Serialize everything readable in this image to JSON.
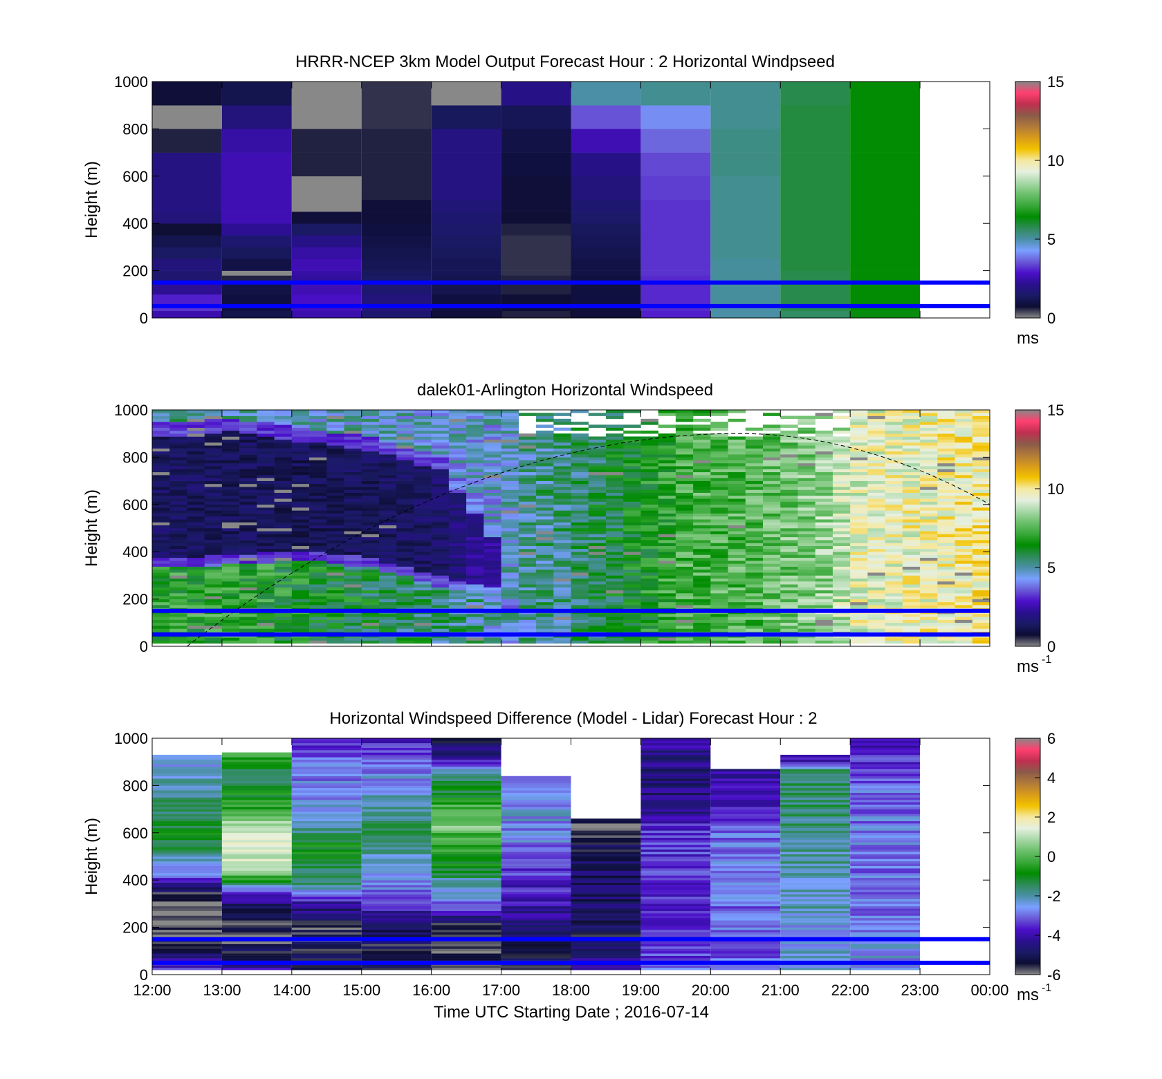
{
  "figure": {
    "xlabel": "Time UTC  Starting Date ; 2016-07-14",
    "x_tick_labels": [
      "12:00",
      "13:00",
      "14:00",
      "15:00",
      "16:00",
      "17:00",
      "18:00",
      "19:00",
      "20:00",
      "21:00",
      "22:00",
      "23:00",
      "00:00"
    ],
    "y_tick_labels": [
      "0",
      "200",
      "400",
      "600",
      "800",
      "1000"
    ],
    "ylabel": "Height (m)"
  },
  "colormap": [
    "#888888",
    "#0d0d33",
    "#1a1a66",
    "#2a0f8f",
    "#4b0fc9",
    "#6a5ad6",
    "#7aa0ff",
    "#4a8fa6",
    "#2e8b57",
    "#008c00",
    "#3aa83a",
    "#6cc06c",
    "#a8d8a8",
    "#e6f0e0",
    "#f5e8a0",
    "#f2c200",
    "#d99b1a",
    "#b07a3a",
    "#8b5a4a",
    "#c03050",
    "#ff4070",
    "#888888"
  ],
  "chart_data": [
    {
      "type": "heatmap",
      "title": "HRRR-NCEP 3km Model Output   Forecast Hour : 2 Horizontal Windpseed",
      "xlabel": "",
      "ylabel": "Height (m)",
      "xlim": [
        12,
        24
      ],
      "ylim": [
        0,
        1000
      ],
      "y_ticks": [
        0,
        200,
        400,
        600,
        800,
        1000
      ],
      "colorbar": {
        "ticks": [
          "0",
          "5",
          "10",
          "15"
        ],
        "range": [
          0,
          15
        ],
        "unit": "ms",
        "unit_sup": ""
      },
      "reference_lines_m": [
        150,
        50
      ],
      "y_edges": [
        0,
        30,
        50,
        100,
        150,
        180,
        200,
        250,
        300,
        350,
        400,
        450,
        500,
        600,
        700,
        800,
        900,
        1000
      ],
      "columns": [
        {
          "t": 12,
          "speeds": [
            2.5,
            3.2,
            3.0,
            2.2,
            1.6,
            1.6,
            1.8,
            1.4,
            1.1,
            0.7,
            1.8,
            1.9,
            1.9,
            1.9,
            0.6,
            0.0,
            0.8
          ]
        },
        {
          "t": 13,
          "speeds": [
            1.1,
            0.9,
            0.9,
            1.0,
            0.6,
            0.0,
            1.0,
            1.3,
            1.6,
            2.2,
            2.6,
            2.6,
            2.6,
            2.6,
            2.4,
            1.8,
            1.1
          ]
        },
        {
          "t": 14,
          "speeds": [
            2.5,
            2.7,
            2.8,
            2.6,
            2.3,
            2.4,
            2.6,
            2.4,
            2.0,
            1.4,
            0.8,
            0.0,
            0.0,
            0.6,
            0.6,
            0.0,
            0.0
          ]
        },
        {
          "t": 15,
          "speeds": [
            1.6,
            1.8,
            1.8,
            1.6,
            1.4,
            1.3,
            1.2,
            1.1,
            1.0,
            0.9,
            0.8,
            0.8,
            0.6,
            0.6,
            0.6,
            0.5,
            0.5
          ]
        },
        {
          "t": 16,
          "speeds": [
            0.8,
            0.9,
            0.9,
            1.1,
            1.1,
            1.2,
            1.2,
            1.3,
            1.4,
            1.5,
            1.6,
            1.7,
            1.9,
            1.9,
            1.9,
            1.3,
            0.0
          ]
        },
        {
          "t": 17,
          "speeds": [
            0.6,
            0.7,
            0.7,
            0.6,
            0.6,
            0.5,
            0.5,
            0.5,
            0.5,
            0.6,
            0.7,
            0.8,
            0.8,
            0.9,
            1.0,
            1.2,
            2.0
          ]
        },
        {
          "t": 18,
          "speeds": [
            0.8,
            0.8,
            0.9,
            0.9,
            0.9,
            1.0,
            1.0,
            1.1,
            1.2,
            1.3,
            1.5,
            1.6,
            1.8,
            2.0,
            2.6,
            3.5,
            5.0
          ]
        },
        {
          "t": 19,
          "speeds": [
            3.0,
            3.1,
            3.1,
            3.1,
            3.1,
            3.2,
            3.2,
            3.2,
            3.2,
            3.2,
            3.2,
            3.2,
            3.3,
            3.4,
            3.7,
            4.1,
            5.2
          ]
        },
        {
          "t": 20,
          "speeds": [
            5.0,
            5.0,
            5.1,
            5.1,
            5.1,
            5.1,
            5.1,
            5.2,
            5.2,
            5.2,
            5.2,
            5.2,
            5.2,
            5.3,
            5.3,
            5.2,
            5.2
          ]
        },
        {
          "t": 21,
          "speeds": [
            5.6,
            5.8,
            5.8,
            5.8,
            5.8,
            5.8,
            5.9,
            5.9,
            5.9,
            5.9,
            5.9,
            5.9,
            5.9,
            5.9,
            5.9,
            5.9,
            5.8
          ]
        },
        {
          "t": 22,
          "speeds": [
            6.3,
            6.4,
            6.4,
            6.4,
            6.4,
            6.4,
            6.4,
            6.4,
            6.4,
            6.4,
            6.4,
            6.4,
            6.4,
            6.4,
            6.4,
            6.4,
            6.4
          ]
        }
      ]
    },
    {
      "type": "heatmap",
      "title": "dalek01-Arlington  Horizontal Windspeed",
      "xlabel": "",
      "ylabel": "Height (m)",
      "xlim": [
        12,
        24
      ],
      "ylim": [
        0,
        1000
      ],
      "y_ticks": [
        0,
        200,
        400,
        600,
        800,
        1000
      ],
      "colorbar": {
        "ticks": [
          "0",
          "5",
          "10",
          "15"
        ],
        "range": [
          0,
          15
        ],
        "unit": "ms",
        "unit_sup": "-1"
      },
      "reference_lines_m": [
        150,
        50
      ],
      "dashed_curve": {
        "start_t": 12.5,
        "peak_t": 20.4,
        "peak_height_m": 900,
        "end_t": 24,
        "end_height_m": 600
      },
      "time_resolution_h": 0.25,
      "time_range": [
        12,
        23.9
      ],
      "regime": [
        {
          "t": 12.0,
          "ll_top": 330,
          "jet_top": 940,
          "low_speed": 6.8,
          "low_bg": 1.4,
          "above": 5.5
        },
        {
          "t": 13.0,
          "ll_top": 340,
          "jet_top": 960,
          "low_speed": 7.0,
          "low_bg": 1.3,
          "above": 5.2
        },
        {
          "t": 14.0,
          "ll_top": 360,
          "jet_top": 920,
          "low_speed": 6.4,
          "low_bg": 1.2,
          "above": 4.8
        },
        {
          "t": 15.0,
          "ll_top": 330,
          "jet_top": 880,
          "low_speed": 6.0,
          "low_bg": 1.3,
          "above": 4.8
        },
        {
          "t": 16.0,
          "ll_top": 250,
          "jet_top": 800,
          "low_speed": 5.5,
          "low_bg": 1.5,
          "above": 4.6
        },
        {
          "t": 16.8,
          "ll_top": 200,
          "jet_top": 500,
          "low_speed": 4.8,
          "low_bg": 2.5,
          "above": 4.5
        },
        {
          "t": 17.2,
          "ll_top": 0,
          "jet_top": 0,
          "low_speed": 4.4,
          "low_bg": 4.4,
          "above": 5.0
        },
        {
          "t": 18.5,
          "ll_top": 0,
          "jet_top": 0,
          "low_speed": 5.5,
          "low_bg": 5.5,
          "above": 6.0
        },
        {
          "t": 19.5,
          "ll_top": 0,
          "jet_top": 0,
          "low_speed": 7.0,
          "low_bg": 7.0,
          "above": 7.3
        },
        {
          "t": 20.5,
          "ll_top": 0,
          "jet_top": 0,
          "low_speed": 7.6,
          "low_bg": 7.6,
          "above": 7.5
        },
        {
          "t": 21.5,
          "ll_top": 0,
          "jet_top": 0,
          "low_speed": 7.8,
          "low_bg": 7.8,
          "above": 8.3
        },
        {
          "t": 22.0,
          "ll_top": 0,
          "jet_top": 0,
          "low_speed": 9.0,
          "low_bg": 9.0,
          "above": 9.3
        },
        {
          "t": 23.0,
          "ll_top": 0,
          "jet_top": 0,
          "low_speed": 9.4,
          "low_bg": 9.4,
          "above": 9.6
        },
        {
          "t": 24.0,
          "ll_top": 0,
          "jet_top": 0,
          "low_speed": 10.3,
          "low_bg": 10.3,
          "above": 10.0
        }
      ]
    },
    {
      "type": "heatmap",
      "title": "Horizontal Windspeed Difference (Model - Lidar) Forecast Hour : 2",
      "xlabel": "Time UTC  Starting Date ; 2016-07-14",
      "ylabel": "Height (m)",
      "xlim": [
        12,
        24
      ],
      "ylim": [
        0,
        1000
      ],
      "y_ticks": [
        0,
        200,
        400,
        600,
        800,
        1000
      ],
      "colorbar": {
        "ticks": [
          "-6",
          "-4",
          "-2",
          "0",
          "2",
          "4",
          "6"
        ],
        "range": [
          -6,
          6
        ],
        "unit": "ms",
        "unit_sup": "-1"
      },
      "reference_lines_m": [
        150,
        50
      ],
      "columns": [
        {
          "t": 12,
          "top": 930,
          "profile": [
            [
              0,
              -3.0
            ],
            [
              150,
              -6.0
            ],
            [
              300,
              -6.0
            ],
            [
              380,
              -4.5
            ],
            [
              420,
              -2.8
            ],
            [
              600,
              -0.8
            ],
            [
              750,
              -2.0
            ],
            [
              930,
              -2.5
            ]
          ]
        },
        {
          "t": 13,
          "top": 940,
          "profile": [
            [
              0,
              -4.0
            ],
            [
              150,
              -6.0
            ],
            [
              280,
              -5.0
            ],
            [
              380,
              -2.0
            ],
            [
              430,
              1.2
            ],
            [
              600,
              1.5
            ],
            [
              700,
              -0.6
            ],
            [
              850,
              -1.5
            ],
            [
              940,
              0.0
            ]
          ]
        },
        {
          "t": 14,
          "top": 1000,
          "profile": [
            [
              0,
              -5.0
            ],
            [
              200,
              -5.6
            ],
            [
              300,
              -4.0
            ],
            [
              380,
              -1.8
            ],
            [
              550,
              -0.8
            ],
            [
              650,
              -2.5
            ],
            [
              900,
              -3.0
            ],
            [
              1000,
              -3.5
            ]
          ]
        },
        {
          "t": 15,
          "top": 1000,
          "profile": [
            [
              0,
              -5.5
            ],
            [
              200,
              -5.0
            ],
            [
              300,
              -3.5
            ],
            [
              400,
              -2.5
            ],
            [
              600,
              -1.5
            ],
            [
              800,
              -2.5
            ],
            [
              950,
              -3.5
            ],
            [
              1000,
              -4.0
            ]
          ]
        },
        {
          "t": 16,
          "top": 1000,
          "profile": [
            [
              0,
              -5.8
            ],
            [
              200,
              -5.5
            ],
            [
              300,
              -2.8
            ],
            [
              450,
              -1.2
            ],
            [
              650,
              0.5
            ],
            [
              850,
              -2.0
            ],
            [
              920,
              -4.5
            ],
            [
              1000,
              -5.2
            ]
          ]
        },
        {
          "t": 17,
          "top": 840,
          "profile": [
            [
              0,
              -5.5
            ],
            [
              150,
              -5.0
            ],
            [
              300,
              -4.0
            ],
            [
              500,
              -3.0
            ],
            [
              700,
              -2.5
            ],
            [
              840,
              -3.0
            ]
          ]
        },
        {
          "t": 18,
          "top": 660,
          "profile": [
            [
              0,
              -4.0
            ],
            [
              150,
              -5.2
            ],
            [
              300,
              -4.8
            ],
            [
              500,
              -5.0
            ],
            [
              660,
              -5.6
            ]
          ]
        },
        {
          "t": 19,
          "top": 1000,
          "profile": [
            [
              0,
              -3.0
            ],
            [
              200,
              -3.8
            ],
            [
              400,
              -3.4
            ],
            [
              600,
              -3.5
            ],
            [
              700,
              -4.5
            ],
            [
              850,
              -4.6
            ],
            [
              1000,
              -4.0
            ]
          ]
        },
        {
          "t": 20,
          "top": 870,
          "profile": [
            [
              0,
              -3.2
            ],
            [
              200,
              -3.0
            ],
            [
              400,
              -2.8
            ],
            [
              600,
              -3.0
            ],
            [
              750,
              -4.0
            ],
            [
              870,
              -4.2
            ]
          ]
        },
        {
          "t": 21,
          "top": 930,
          "profile": [
            [
              0,
              -2.5
            ],
            [
              200,
              -2.4
            ],
            [
              400,
              -2.0
            ],
            [
              600,
              -1.8
            ],
            [
              850,
              -1.4
            ],
            [
              930,
              -5.0
            ]
          ]
        },
        {
          "t": 22,
          "top": 1000,
          "profile": [
            [
              0,
              -2.5
            ],
            [
              200,
              -2.8
            ],
            [
              400,
              -2.9
            ],
            [
              600,
              -2.8
            ],
            [
              800,
              -3.0
            ],
            [
              900,
              -3.5
            ],
            [
              1000,
              -3.8
            ]
          ]
        }
      ]
    }
  ]
}
